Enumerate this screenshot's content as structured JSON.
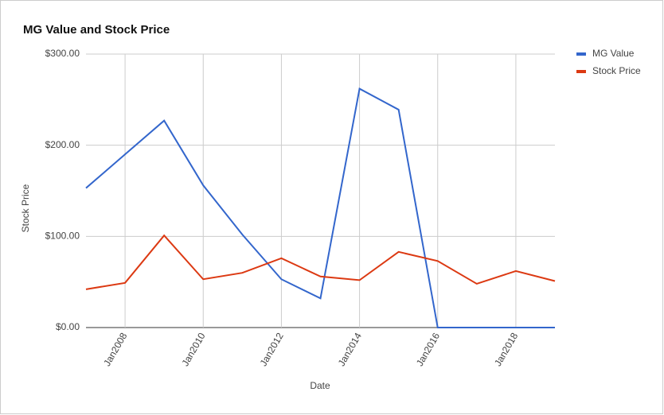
{
  "chart_data": {
    "type": "line",
    "title": "MG Value and Stock Price",
    "x_label": "Date",
    "y_label": "Stock Price",
    "x": [
      "2007-01",
      "2008-01",
      "2009-01",
      "2010-01",
      "2011-01",
      "2012-01",
      "2013-01",
      "2014-01",
      "2015-01",
      "2016-01",
      "2017-01",
      "2018-01",
      "2019-01"
    ],
    "xlim": [
      "2007-01",
      "2019-01"
    ],
    "xticks": [
      {
        "value": "2008-01",
        "label": "Jan2008"
      },
      {
        "value": "2010-01",
        "label": "Jan2010"
      },
      {
        "value": "2012-01",
        "label": "Jan2012"
      },
      {
        "value": "2014-01",
        "label": "Jan2014"
      },
      {
        "value": "2016-01",
        "label": "Jan2016"
      },
      {
        "value": "2018-01",
        "label": "Jan2018"
      }
    ],
    "ylim": [
      0,
      300
    ],
    "yticks": [
      {
        "value": 0,
        "label": "$0.00"
      },
      {
        "value": 100,
        "label": "$100.00"
      },
      {
        "value": 200,
        "label": "$200.00"
      },
      {
        "value": 300,
        "label": "$300.00"
      }
    ],
    "grid": true,
    "legend": "right",
    "series": [
      {
        "name": "MG Value",
        "color": "#3366cc",
        "values": [
          153,
          190,
          227,
          156,
          102,
          53,
          32,
          262,
          239,
          0,
          0,
          0,
          0
        ]
      },
      {
        "name": "Stock Price",
        "color": "#dc3912",
        "values": [
          42,
          49,
          101,
          53,
          60,
          76,
          56,
          52,
          83,
          73,
          48,
          62,
          51
        ]
      }
    ]
  }
}
